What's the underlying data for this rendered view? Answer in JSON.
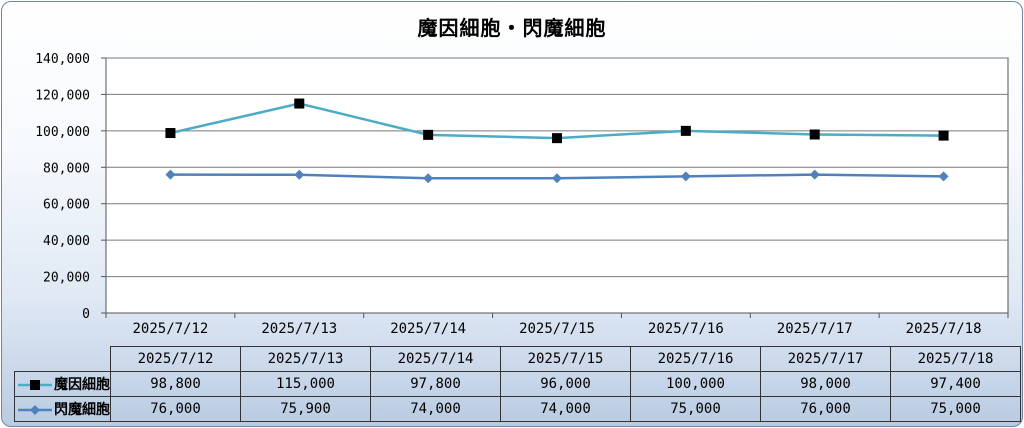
{
  "chart_data": {
    "type": "line",
    "title": "魔因細胞・閃魔細胞",
    "categories": [
      "2025/7/12",
      "2025/7/13",
      "2025/7/14",
      "2025/7/15",
      "2025/7/16",
      "2025/7/17",
      "2025/7/18"
    ],
    "ylim": [
      0,
      140000
    ],
    "yticks": [
      0,
      20000,
      40000,
      60000,
      80000,
      100000,
      120000,
      140000
    ],
    "ytick_labels": [
      "0",
      "20,000",
      "40,000",
      "60,000",
      "80,000",
      "100,000",
      "120,000",
      "140,000"
    ],
    "grid": true,
    "legend": "data-table",
    "series": [
      {
        "name": "魔因細胞",
        "values": [
          98800,
          115000,
          97800,
          96000,
          100000,
          98000,
          97400
        ],
        "labels": [
          "98,800",
          "115,000",
          "97,800",
          "96,000",
          "100,000",
          "98,000",
          "97,400"
        ],
        "color": "#4aacc5",
        "marker": "square",
        "marker_color": "#000000"
      },
      {
        "name": "閃魔細胞",
        "values": [
          76000,
          75900,
          74000,
          74000,
          75000,
          76000,
          75000
        ],
        "labels": [
          "76,000",
          "75,900",
          "74,000",
          "74,000",
          "75,000",
          "76,000",
          "75,000"
        ],
        "color": "#4f81bd",
        "marker": "diamond",
        "marker_color": "#4f81bd"
      }
    ]
  }
}
